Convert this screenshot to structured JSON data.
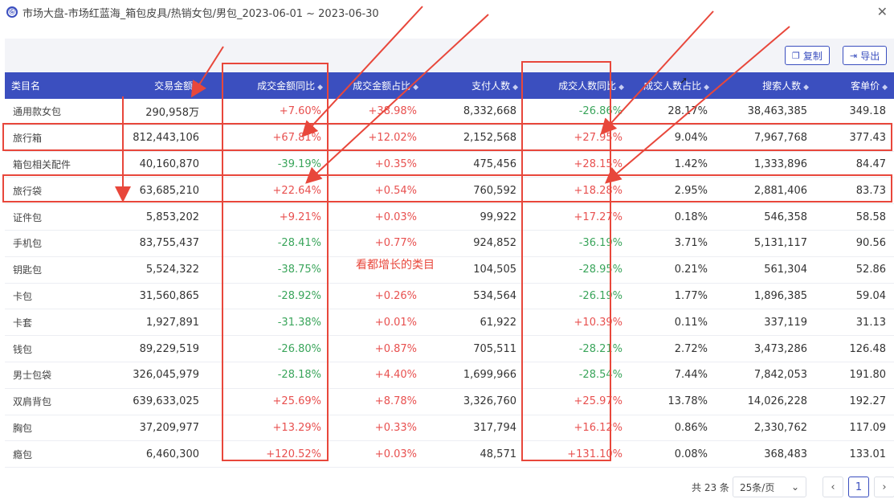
{
  "window": {
    "title": "市场大盘-市场红蓝海_箱包皮具/热销女包/男包_2023-06-01 ~ 2023-06-30",
    "logo_text": "Ⓖ"
  },
  "toolbar": {
    "copy_label": "复制",
    "export_label": "导出"
  },
  "table": {
    "columns": [
      "类目名",
      "交易金额",
      "成交金额同比",
      "成交金额占比",
      "支付人数",
      "成交人数同比",
      "成交人数占比",
      "搜索人数",
      "客单价"
    ],
    "rows": [
      {
        "name": "通用款女包",
        "amount": "290,958万",
        "amount_yoy": "+7.60%",
        "amount_share": "+38.98%",
        "payers": "8,332,668",
        "buyers_yoy": "-26.86%",
        "buyers_share": "28.17%",
        "searchers": "38,463,385",
        "avg_price": "349.18"
      },
      {
        "name": "旅行箱",
        "amount": "812,443,106",
        "amount_yoy": "+67.81%",
        "amount_share": "+12.02%",
        "payers": "2,152,568",
        "buyers_yoy": "+27.95%",
        "buyers_share": "9.04%",
        "searchers": "7,967,768",
        "avg_price": "377.43"
      },
      {
        "name": "箱包相关配件",
        "amount": "40,160,870",
        "amount_yoy": "-39.19%",
        "amount_share": "+0.35%",
        "payers": "475,456",
        "buyers_yoy": "+28.15%",
        "buyers_share": "1.42%",
        "searchers": "1,333,896",
        "avg_price": "84.47"
      },
      {
        "name": "旅行袋",
        "amount": "63,685,210",
        "amount_yoy": "+22.64%",
        "amount_share": "+0.54%",
        "payers": "760,592",
        "buyers_yoy": "+18.28%",
        "buyers_share": "2.95%",
        "searchers": "2,881,406",
        "avg_price": "83.73"
      },
      {
        "name": "证件包",
        "amount": "5,853,202",
        "amount_yoy": "+9.21%",
        "amount_share": "+0.03%",
        "payers": "99,922",
        "buyers_yoy": "+17.27%",
        "buyers_share": "0.18%",
        "searchers": "546,358",
        "avg_price": "58.58"
      },
      {
        "name": "手机包",
        "amount": "83,755,437",
        "amount_yoy": "-28.41%",
        "amount_share": "+0.77%",
        "payers": "924,852",
        "buyers_yoy": "-36.19%",
        "buyers_share": "3.71%",
        "searchers": "5,131,117",
        "avg_price": "90.56"
      },
      {
        "name": "钥匙包",
        "amount": "5,524,322",
        "amount_yoy": "-38.75%",
        "amount_share": "",
        "payers": "104,505",
        "buyers_yoy": "-28.95%",
        "buyers_share": "0.21%",
        "searchers": "561,304",
        "avg_price": "52.86"
      },
      {
        "name": "卡包",
        "amount": "31,560,865",
        "amount_yoy": "-28.92%",
        "amount_share": "+0.26%",
        "payers": "534,564",
        "buyers_yoy": "-26.19%",
        "buyers_share": "1.77%",
        "searchers": "1,896,385",
        "avg_price": "59.04"
      },
      {
        "name": "卡套",
        "amount": "1,927,891",
        "amount_yoy": "-31.38%",
        "amount_share": "+0.01%",
        "payers": "61,922",
        "buyers_yoy": "+10.39%",
        "buyers_share": "0.11%",
        "searchers": "337,119",
        "avg_price": "31.13"
      },
      {
        "name": "钱包",
        "amount": "89,229,519",
        "amount_yoy": "-26.80%",
        "amount_share": "+0.87%",
        "payers": "705,511",
        "buyers_yoy": "-28.21%",
        "buyers_share": "2.72%",
        "searchers": "3,473,286",
        "avg_price": "126.48"
      },
      {
        "name": "男士包袋",
        "amount": "326,045,979",
        "amount_yoy": "-28.18%",
        "amount_share": "+4.40%",
        "payers": "1,699,966",
        "buyers_yoy": "-28.54%",
        "buyers_share": "7.44%",
        "searchers": "7,842,053",
        "avg_price": "191.80"
      },
      {
        "name": "双肩背包",
        "amount": "639,633,025",
        "amount_yoy": "+25.69%",
        "amount_share": "+8.78%",
        "payers": "3,326,760",
        "buyers_yoy": "+25.97%",
        "buyers_share": "13.78%",
        "searchers": "14,026,228",
        "avg_price": "192.27"
      },
      {
        "name": "胸包",
        "amount": "37,209,977",
        "amount_yoy": "+13.29%",
        "amount_share": "+0.33%",
        "payers": "317,794",
        "buyers_yoy": "+16.12%",
        "buyers_share": "0.86%",
        "searchers": "2,330,762",
        "avg_price": "117.09"
      },
      {
        "name": "瘾包",
        "amount": "6,460,300",
        "amount_yoy": "+120.52%",
        "amount_share": "+0.03%",
        "payers": "48,571",
        "buyers_yoy": "+131.10%",
        "buyers_share": "0.08%",
        "searchers": "368,483",
        "avg_price": "133.01"
      }
    ]
  },
  "annotation": {
    "text": "看都增长的类目",
    "color": "#e8473b"
  },
  "pagination": {
    "total": "共 23 条",
    "page_size": "25条/页",
    "current_page": "1"
  },
  "colors": {
    "header_bg": "#3b4fbf",
    "positive": "#e8504f",
    "negative": "#3aa55b",
    "highlight": "#e8473b"
  },
  "icons": [
    "copy-icon",
    "export-icon",
    "close-icon",
    "sort-icon",
    "chevron-down-icon",
    "chevron-left-icon",
    "chevron-right-icon"
  ]
}
